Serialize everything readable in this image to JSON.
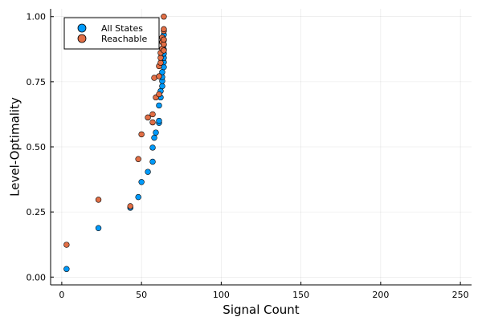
{
  "chart_data": {
    "type": "scatter",
    "xlabel": "Signal Count",
    "ylabel": "Level-Optimality",
    "xlim": [
      -7,
      257
    ],
    "ylim": [
      -0.03,
      1.03
    ],
    "xticks": [
      0,
      50,
      100,
      150,
      200,
      250
    ],
    "yticks": [
      0.0,
      0.25,
      0.5,
      0.75,
      1.0
    ],
    "xtick_labels": [
      "0",
      "50",
      "100",
      "150",
      "200",
      "250"
    ],
    "ytick_labels": [
      "0.00",
      "0.25",
      "0.50",
      "0.75",
      "1.00"
    ],
    "grid": true,
    "legend_position": "top-left",
    "series": [
      {
        "name": "All States",
        "color": "#009AFA",
        "points": [
          [
            3,
            0.031
          ],
          [
            23,
            0.188
          ],
          [
            43,
            0.266
          ],
          [
            48,
            0.307
          ],
          [
            50,
            0.365
          ],
          [
            54,
            0.404
          ],
          [
            57,
            0.443
          ],
          [
            57,
            0.497
          ],
          [
            58,
            0.535
          ],
          [
            59,
            0.555
          ],
          [
            61,
            0.592
          ],
          [
            61,
            0.6
          ],
          [
            61,
            0.659
          ],
          [
            62,
            0.69
          ],
          [
            62,
            0.714
          ],
          [
            63,
            0.733
          ],
          [
            63,
            0.753
          ],
          [
            63,
            0.768
          ],
          [
            63,
            0.787
          ],
          [
            64,
            0.806
          ],
          [
            64,
            0.825
          ],
          [
            64,
            0.842
          ],
          [
            64,
            0.858
          ],
          [
            64,
            0.874
          ],
          [
            64,
            0.892
          ],
          [
            64,
            0.91
          ],
          [
            64,
            0.931
          ]
        ]
      },
      {
        "name": "Reachable",
        "color": "#E26F46",
        "points": [
          [
            3,
            0.124
          ],
          [
            23,
            0.297
          ],
          [
            43,
            0.272
          ],
          [
            48,
            0.453
          ],
          [
            50,
            0.548
          ],
          [
            54,
            0.613
          ],
          [
            57,
            0.594
          ],
          [
            57,
            0.625
          ],
          [
            58,
            0.765
          ],
          [
            59,
            0.69
          ],
          [
            61,
            0.702
          ],
          [
            61,
            0.771
          ],
          [
            61,
            0.81
          ],
          [
            62,
            0.823
          ],
          [
            62,
            0.842
          ],
          [
            62,
            0.861
          ],
          [
            63,
            0.877
          ],
          [
            63,
            0.902
          ],
          [
            63,
            0.92
          ],
          [
            64,
            0.87
          ],
          [
            64,
            0.894
          ],
          [
            64,
            0.912
          ],
          [
            64,
            0.945
          ],
          [
            64,
            0.952
          ],
          [
            64,
            1.0
          ]
        ]
      }
    ]
  }
}
